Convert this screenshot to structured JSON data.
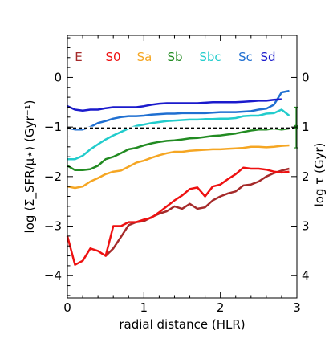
{
  "chart_data": {
    "type": "line",
    "title": "",
    "xlabel": "radial distance (HLR)",
    "ylabel": "log ⟨Σ_SFR/μ⋆⟩ (Gyr⁻¹)",
    "ylabel_right": "log τ (Gyr)",
    "xlim": [
      0,
      3
    ],
    "ylim": [
      -4.45,
      0.85
    ],
    "x_ticks": [
      0,
      1,
      2,
      3
    ],
    "y_ticks": [
      0,
      -1,
      -2,
      -3,
      -4
    ],
    "right_ticks": [
      {
        "y": 0,
        "label": "0"
      },
      {
        "y": -1,
        "label": "1"
      },
      {
        "y": -2,
        "label": "2"
      },
      {
        "y": -3,
        "label": "3"
      },
      {
        "y": -4,
        "label": "4"
      }
    ],
    "grid": false,
    "legend_position": "top",
    "reference_line": {
      "y": -1.02,
      "style": "dashed",
      "color": "#000000"
    },
    "error_bar": {
      "x": 3.0,
      "y": -1.0,
      "low": -1.42,
      "high": -0.6,
      "color": "#228b22"
    },
    "series": [
      {
        "name": "E",
        "color": "#a52a2a",
        "x": [
          0.5,
          0.6,
          0.7,
          0.8,
          0.9,
          1.0,
          1.1,
          1.2,
          1.3,
          1.4,
          1.5,
          1.6,
          1.7,
          1.8,
          1.9,
          2.0,
          2.1,
          2.2,
          2.3,
          2.4,
          2.5,
          2.6,
          2.7,
          2.8,
          2.9
        ],
        "values": [
          -3.6,
          -3.45,
          -3.22,
          -2.98,
          -2.92,
          -2.9,
          -2.82,
          -2.75,
          -2.7,
          -2.6,
          -2.65,
          -2.55,
          -2.65,
          -2.62,
          -2.48,
          -2.4,
          -2.34,
          -2.3,
          -2.18,
          -2.16,
          -2.1,
          -2.0,
          -1.93,
          -1.88,
          -1.84
        ]
      },
      {
        "name": "S0",
        "color": "#ee1111",
        "x": [
          0,
          0.1,
          0.2,
          0.3,
          0.4,
          0.5,
          0.6,
          0.7,
          0.8,
          0.9,
          1.0,
          1.1,
          1.2,
          1.3,
          1.4,
          1.5,
          1.6,
          1.7,
          1.8,
          1.9,
          2.0,
          2.1,
          2.2,
          2.3,
          2.4,
          2.5,
          2.6,
          2.7,
          2.8,
          2.9
        ],
        "values": [
          -3.2,
          -3.78,
          -3.7,
          -3.45,
          -3.5,
          -3.6,
          -3.0,
          -3.0,
          -2.92,
          -2.92,
          -2.87,
          -2.83,
          -2.72,
          -2.6,
          -2.48,
          -2.38,
          -2.25,
          -2.22,
          -2.4,
          -2.2,
          -2.16,
          -2.05,
          -1.95,
          -1.82,
          -1.84,
          -1.84,
          -1.86,
          -1.9,
          -1.92,
          -1.9
        ]
      },
      {
        "name": "Sa",
        "color": "#f5a623",
        "x": [
          0,
          0.1,
          0.2,
          0.3,
          0.4,
          0.5,
          0.6,
          0.7,
          0.8,
          0.9,
          1.0,
          1.1,
          1.2,
          1.3,
          1.4,
          1.5,
          1.6,
          1.7,
          1.8,
          1.9,
          2.0,
          2.1,
          2.2,
          2.3,
          2.4,
          2.5,
          2.6,
          2.7,
          2.8,
          2.9
        ],
        "values": [
          -2.2,
          -2.23,
          -2.2,
          -2.1,
          -2.03,
          -1.95,
          -1.9,
          -1.88,
          -1.8,
          -1.72,
          -1.68,
          -1.62,
          -1.57,
          -1.53,
          -1.5,
          -1.5,
          -1.48,
          -1.47,
          -1.46,
          -1.45,
          -1.45,
          -1.44,
          -1.43,
          -1.42,
          -1.4,
          -1.4,
          -1.41,
          -1.4,
          -1.38,
          -1.37
        ]
      },
      {
        "name": "Sb",
        "color": "#228b22",
        "x": [
          0,
          0.1,
          0.2,
          0.3,
          0.4,
          0.5,
          0.6,
          0.7,
          0.8,
          0.9,
          1.0,
          1.1,
          1.2,
          1.3,
          1.4,
          1.5,
          1.6,
          1.7,
          1.8,
          1.9,
          2.0,
          2.1,
          2.2,
          2.3,
          2.4,
          2.5,
          2.6,
          2.7,
          2.8,
          2.9
        ],
        "values": [
          -1.78,
          -1.87,
          -1.87,
          -1.85,
          -1.78,
          -1.65,
          -1.6,
          -1.53,
          -1.45,
          -1.42,
          -1.37,
          -1.33,
          -1.3,
          -1.28,
          -1.27,
          -1.25,
          -1.23,
          -1.22,
          -1.2,
          -1.18,
          -1.17,
          -1.15,
          -1.13,
          -1.1,
          -1.07,
          -1.05,
          -1.05,
          -1.03,
          -1.05,
          -1.03
        ]
      },
      {
        "name": "Sbc",
        "color": "#22cccc",
        "x": [
          0,
          0.1,
          0.2,
          0.3,
          0.4,
          0.5,
          0.6,
          0.7,
          0.8,
          0.9,
          1.0,
          1.1,
          1.2,
          1.3,
          1.4,
          1.5,
          1.6,
          1.7,
          1.8,
          1.9,
          2.0,
          2.1,
          2.2,
          2.3,
          2.4,
          2.5,
          2.6,
          2.7,
          2.8,
          2.9
        ],
        "values": [
          -1.65,
          -1.65,
          -1.58,
          -1.45,
          -1.35,
          -1.25,
          -1.17,
          -1.1,
          -1.03,
          -0.98,
          -0.95,
          -0.92,
          -0.9,
          -0.88,
          -0.87,
          -0.86,
          -0.85,
          -0.85,
          -0.84,
          -0.84,
          -0.83,
          -0.83,
          -0.82,
          -0.78,
          -0.77,
          -0.77,
          -0.73,
          -0.72,
          -0.65,
          -0.77
        ]
      },
      {
        "name": "Sc",
        "color": "#1f6fd1",
        "x": [
          0,
          0.1,
          0.2,
          0.3,
          0.4,
          0.5,
          0.6,
          0.7,
          0.8,
          0.9,
          1.0,
          1.1,
          1.2,
          1.3,
          1.4,
          1.5,
          1.6,
          1.7,
          1.8,
          1.9,
          2.0,
          2.1,
          2.2,
          2.3,
          2.4,
          2.5,
          2.6,
          2.7,
          2.8,
          2.9
        ],
        "values": [
          -1.02,
          -1.05,
          -1.05,
          -1.0,
          -0.92,
          -0.88,
          -0.83,
          -0.8,
          -0.78,
          -0.78,
          -0.77,
          -0.75,
          -0.74,
          -0.73,
          -0.73,
          -0.72,
          -0.72,
          -0.72,
          -0.72,
          -0.71,
          -0.7,
          -0.7,
          -0.7,
          -0.69,
          -0.68,
          -0.65,
          -0.63,
          -0.55,
          -0.3,
          -0.27
        ]
      },
      {
        "name": "Sd",
        "color": "#1a1acc",
        "x": [
          0,
          0.1,
          0.2,
          0.3,
          0.4,
          0.5,
          0.6,
          0.7,
          0.8,
          0.9,
          1.0,
          1.1,
          1.2,
          1.3,
          1.4,
          1.5,
          1.6,
          1.7,
          1.8,
          1.9,
          2.0,
          2.1,
          2.2,
          2.3,
          2.4,
          2.5,
          2.6,
          2.7,
          2.8
        ],
        "values": [
          -0.58,
          -0.65,
          -0.67,
          -0.65,
          -0.65,
          -0.62,
          -0.6,
          -0.6,
          -0.6,
          -0.6,
          -0.58,
          -0.55,
          -0.53,
          -0.52,
          -0.52,
          -0.52,
          -0.52,
          -0.52,
          -0.51,
          -0.5,
          -0.5,
          -0.5,
          -0.5,
          -0.49,
          -0.48,
          -0.47,
          -0.47,
          -0.45,
          -0.44
        ]
      }
    ]
  }
}
